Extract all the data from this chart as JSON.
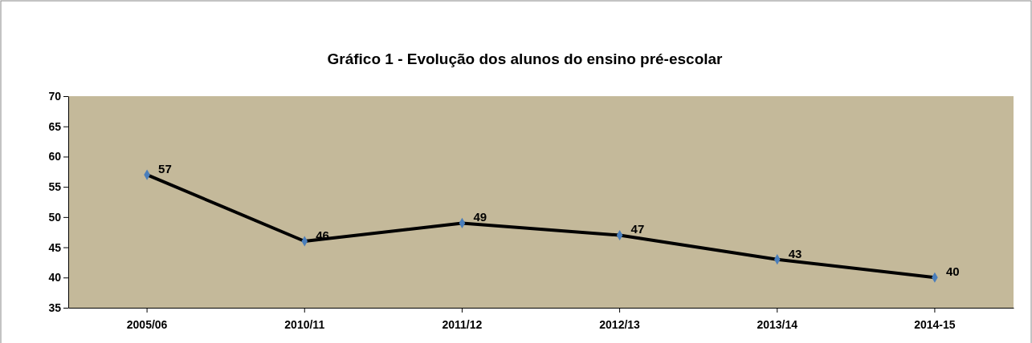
{
  "chart_data": {
    "type": "line",
    "title": "Gráfico 1 - Evolução dos alunos do ensino pré-escolar",
    "categories": [
      "2005/06",
      "2010/11",
      "2011/12",
      "2012/13",
      "2013/14",
      "2014-15"
    ],
    "series": [
      {
        "color": "#000000",
        "values": [
          57,
          46,
          49,
          47,
          43,
          40
        ]
      }
    ],
    "marker": "diamond",
    "ylim": [
      35,
      70
    ],
    "yticks": [
      35,
      40,
      45,
      50,
      55,
      60,
      65,
      70
    ],
    "grid": false,
    "data_labels": true
  }
}
